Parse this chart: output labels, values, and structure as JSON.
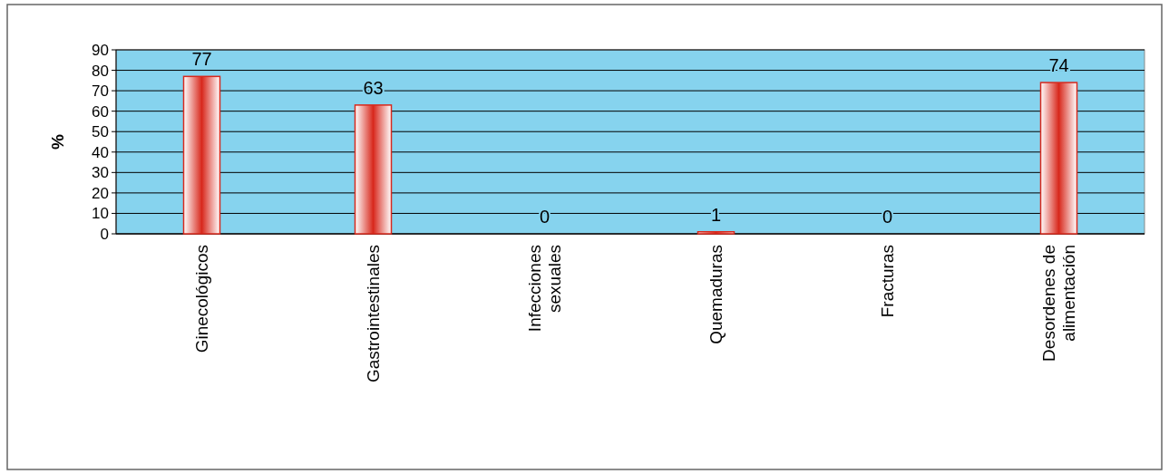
{
  "chart_data": {
    "type": "bar",
    "ylabel": "%",
    "categories": [
      "Ginecológicos",
      "Gastrointestinales",
      "Infecciones sexuales",
      "Quemaduras",
      "Fracturas",
      "Desordenes de alimentación"
    ],
    "values": [
      77,
      63,
      0,
      1,
      0,
      74
    ],
    "color": "#d8281c",
    "ylim": [
      0,
      90
    ],
    "yticks": [
      0,
      10,
      20,
      30,
      40,
      50,
      60,
      70,
      80,
      90
    ],
    "grid": "y",
    "data_labels": true
  }
}
